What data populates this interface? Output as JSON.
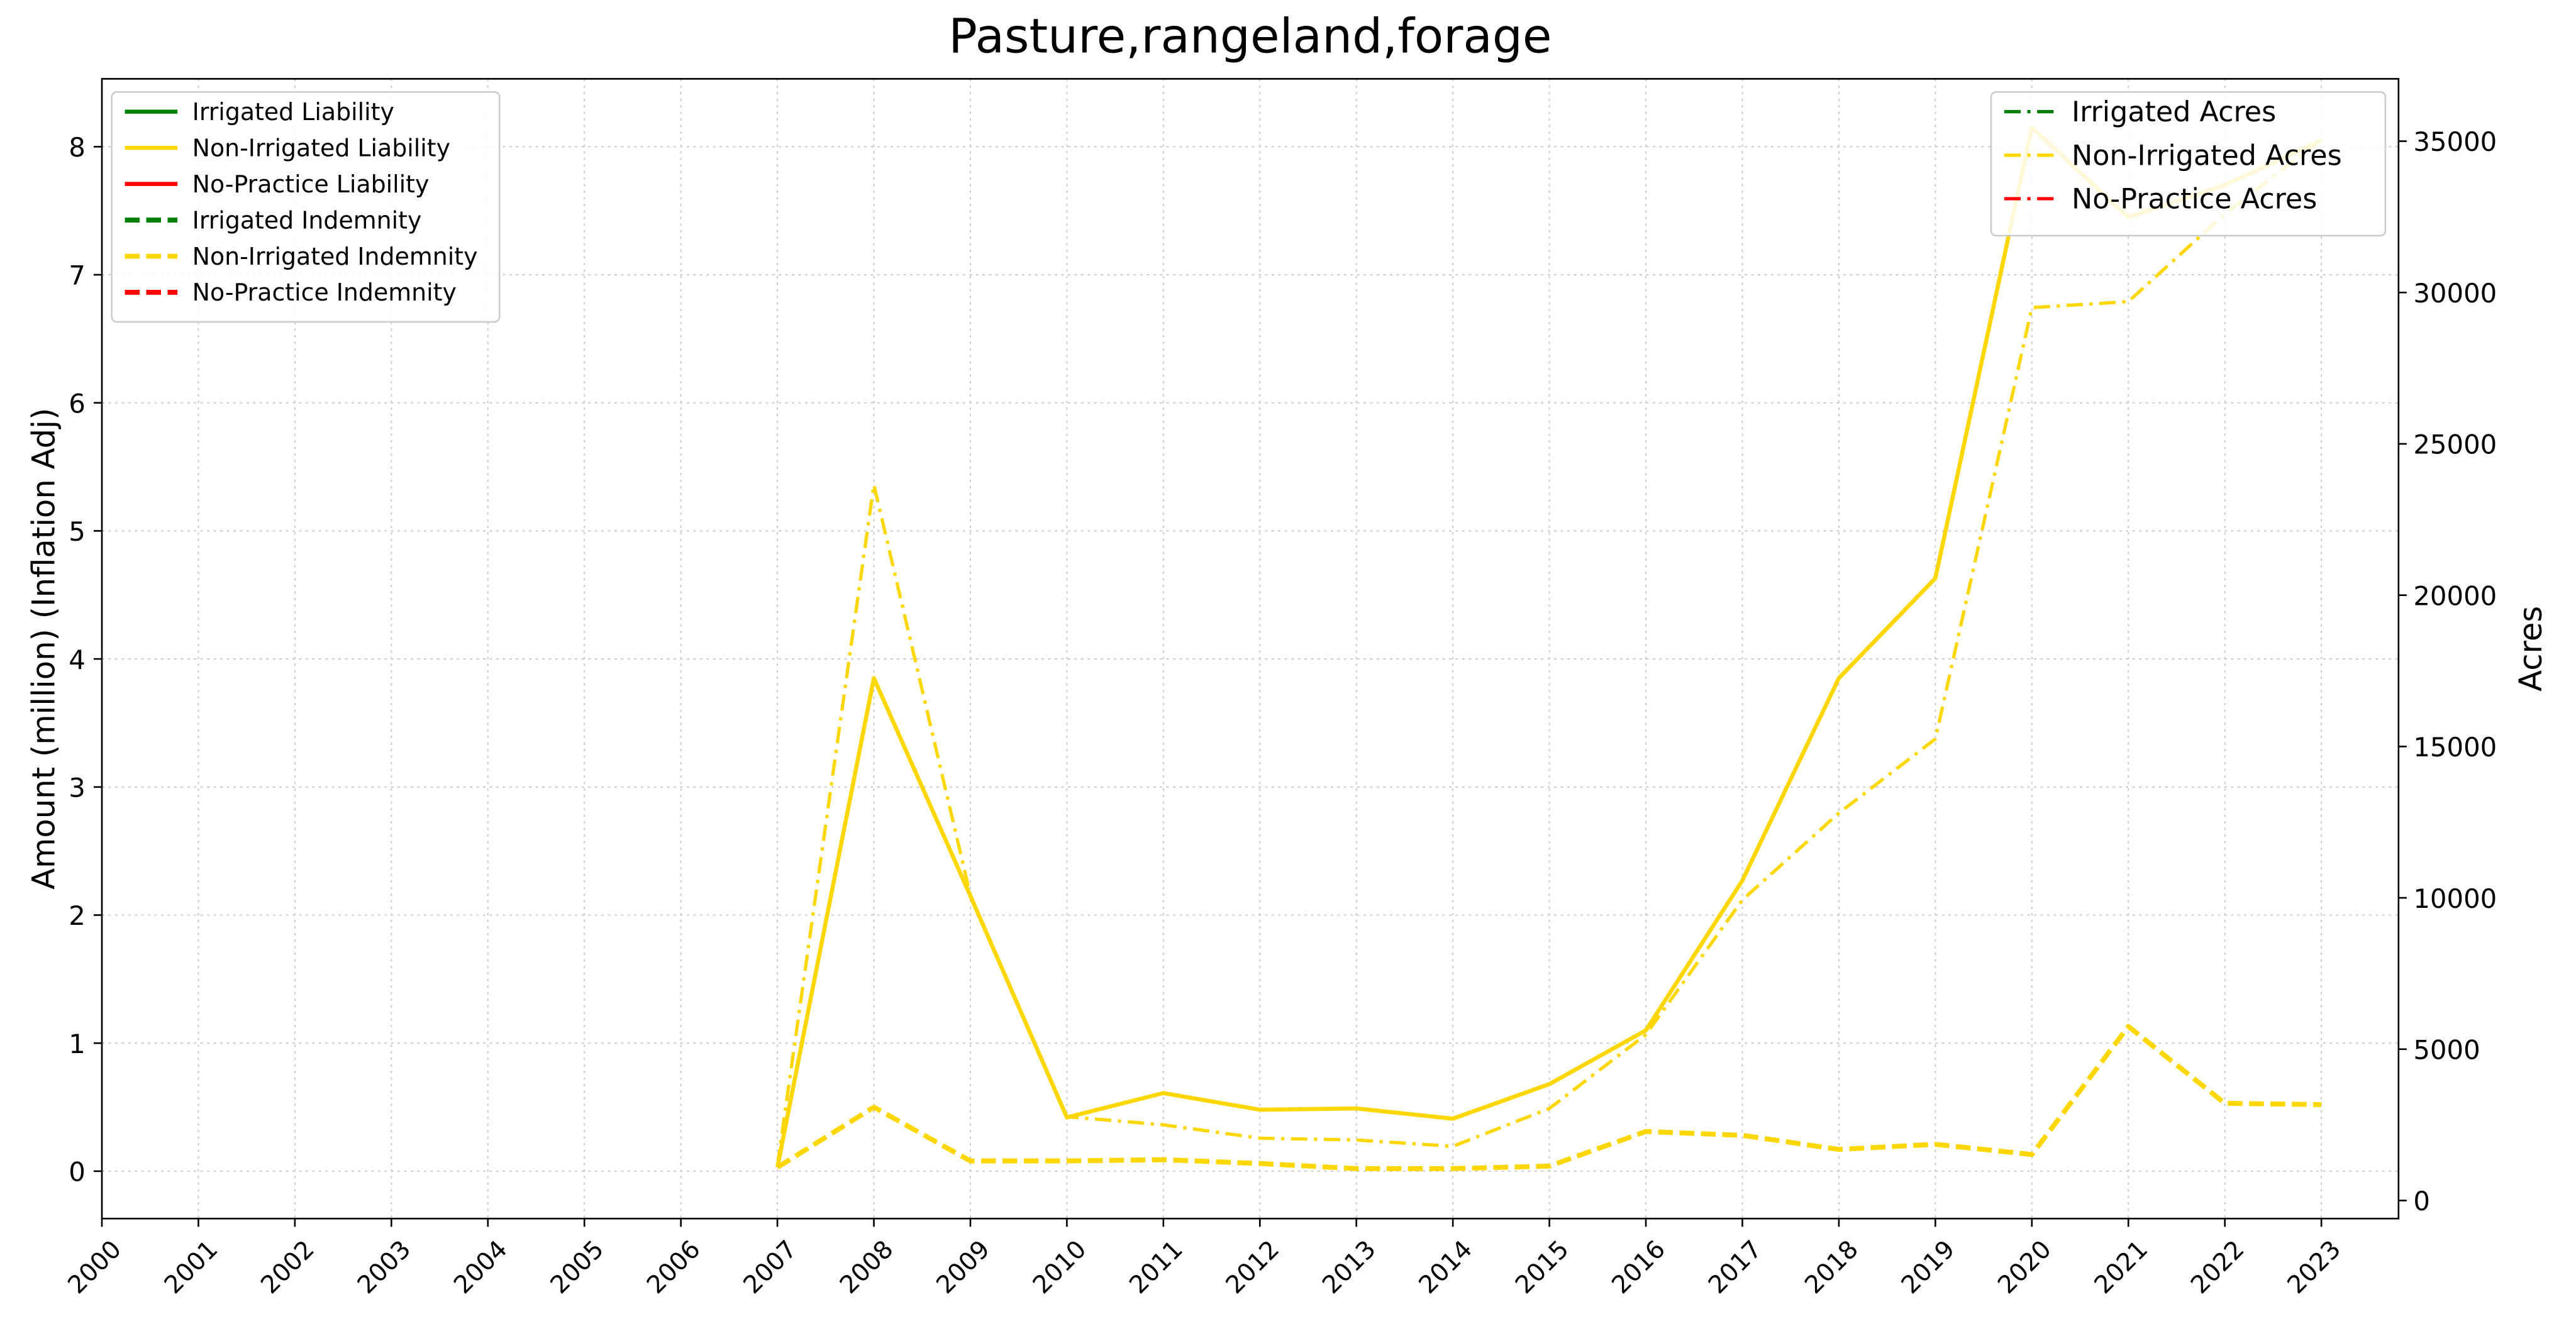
{
  "chart_data": {
    "type": "line",
    "title": "Pasture,rangeland,forage",
    "ylabel": "Amount (million) (Inflation Adj)",
    "y2label": "Acres",
    "categories": [
      "2000",
      "2001",
      "2002",
      "2003",
      "2004",
      "2005",
      "2006",
      "2007",
      "2008",
      "2009",
      "2010",
      "2011",
      "2012",
      "2013",
      "2014",
      "2015",
      "2016",
      "2017",
      "2018",
      "2019",
      "2020",
      "2021",
      "2022",
      "2023"
    ],
    "ylim": [
      -0.37,
      8.53
    ],
    "yticks": [
      0,
      1,
      2,
      3,
      4,
      5,
      6,
      7,
      8
    ],
    "y2lim": [
      -597,
      37060
    ],
    "y2ticks": [
      0,
      5000,
      10000,
      15000,
      20000,
      25000,
      30000,
      35000
    ],
    "grid": true,
    "legend": "upper left",
    "legend2": "upper right",
    "series": [
      {
        "name": "Irrigated Liability",
        "color": "green",
        "linestyle": "solid",
        "values": [
          null,
          null,
          null,
          null,
          null,
          null,
          null,
          null,
          null,
          null,
          null,
          null,
          null,
          null,
          null,
          null,
          null,
          null,
          null,
          null,
          null,
          null,
          null,
          null
        ]
      },
      {
        "name": "Non-Irrigated Liability",
        "color": "#FFD700",
        "linestyle": "solid",
        "values": [
          null,
          null,
          null,
          null,
          null,
          null,
          null,
          0.03,
          3.85,
          2.15,
          0.42,
          0.61,
          0.48,
          0.49,
          0.41,
          0.68,
          1.1,
          2.27,
          3.85,
          4.63,
          8.15,
          7.45,
          7.7,
          8.05
        ]
      },
      {
        "name": "No-Practice Liability",
        "color": "red",
        "linestyle": "solid",
        "values": [
          null,
          null,
          null,
          null,
          null,
          null,
          null,
          null,
          null,
          null,
          null,
          null,
          null,
          null,
          null,
          null,
          null,
          null,
          null,
          null,
          null,
          null,
          null,
          null
        ]
      },
      {
        "name": "Irrigated Indemnity",
        "color": "green",
        "linestyle": "dashed",
        "values": [
          null,
          null,
          null,
          null,
          null,
          null,
          null,
          null,
          null,
          null,
          null,
          null,
          null,
          null,
          null,
          null,
          null,
          null,
          null,
          null,
          null,
          null,
          null,
          null
        ]
      },
      {
        "name": "Non-Irrigated Indemnity",
        "color": "#FFD700",
        "linestyle": "dashed",
        "values": [
          null,
          null,
          null,
          null,
          null,
          null,
          null,
          0.03,
          0.5,
          0.08,
          0.08,
          0.09,
          0.06,
          0.02,
          0.02,
          0.04,
          0.31,
          0.28,
          0.17,
          0.21,
          0.13,
          1.13,
          0.53,
          0.52
        ]
      },
      {
        "name": "No-Practice Indemnity",
        "color": "red",
        "linestyle": "dashed",
        "values": [
          null,
          null,
          null,
          null,
          null,
          null,
          null,
          null,
          null,
          null,
          null,
          null,
          null,
          null,
          null,
          null,
          null,
          null,
          null,
          null,
          null,
          null,
          null,
          null
        ]
      },
      {
        "name": "Irrigated Acres",
        "color": "green",
        "linestyle": "dashdot",
        "axis": "y2",
        "values": [
          null,
          null,
          null,
          null,
          null,
          null,
          null,
          null,
          null,
          null,
          null,
          null,
          null,
          null,
          null,
          null,
          null,
          null,
          null,
          null,
          null,
          null,
          null,
          null
        ]
      },
      {
        "name": "Non-Irrigated Acres",
        "color": "#FFD700",
        "linestyle": "dashdot",
        "axis": "y2",
        "values": [
          null,
          null,
          null,
          null,
          null,
          null,
          null,
          1140,
          23650,
          10090,
          2770,
          2500,
          2060,
          2000,
          1790,
          3040,
          5480,
          9930,
          12800,
          15250,
          29500,
          29700,
          32600,
          35050
        ]
      },
      {
        "name": "No-Practice Acres",
        "color": "red",
        "linestyle": "dashdot",
        "axis": "y2",
        "values": [
          null,
          null,
          null,
          null,
          null,
          null,
          null,
          null,
          null,
          null,
          null,
          null,
          null,
          null,
          null,
          null,
          null,
          null,
          null,
          null,
          null,
          null,
          null,
          null
        ]
      }
    ]
  }
}
